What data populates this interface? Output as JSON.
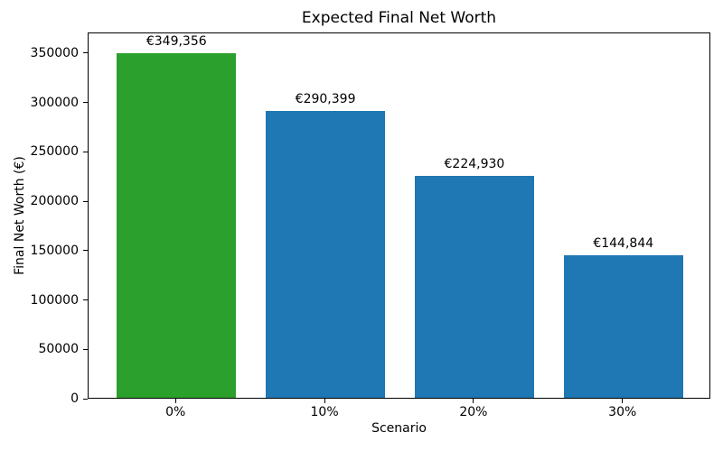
{
  "chart_data": {
    "type": "bar",
    "title": "Expected Final Net Worth",
    "xlabel": "Scenario",
    "ylabel": "Final Net Worth (€)",
    "categories": [
      "0%",
      "10%",
      "20%",
      "30%"
    ],
    "values": [
      349356,
      290399,
      224930,
      144844
    ],
    "bar_labels": [
      "€349,356",
      "€290,399",
      "€224,930",
      "€144,844"
    ],
    "bar_colors": [
      "#2ca02c",
      "#1f77b4",
      "#1f77b4",
      "#1f77b4"
    ],
    "yticks": [
      0,
      50000,
      100000,
      150000,
      200000,
      250000,
      300000,
      350000
    ],
    "ytick_labels": [
      "0",
      "50000",
      "100000",
      "150000",
      "200000",
      "250000",
      "300000",
      "350000"
    ],
    "ylim": [
      0,
      371000
    ],
    "grid": false,
    "legend": null,
    "background_color": "#ffffff",
    "text_color": "#000000"
  }
}
